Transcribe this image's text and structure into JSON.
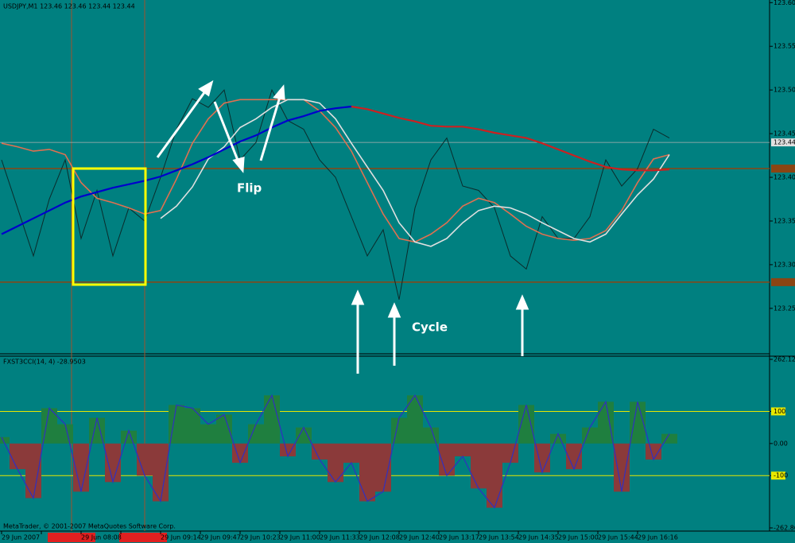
{
  "chart_data": [
    {
      "type": "line",
      "title": "USDJPY,M1  123.46 123.46 123.44 123.44",
      "ylim": [
        123.198,
        123.603
      ],
      "yticks": [
        {
          "value": 123.6,
          "label": "123.60"
        },
        123.55,
        {
          "value": 123.5,
          "label": "123.50"
        },
        123.45,
        {
          "value": 123.4,
          "label": "123.40"
        },
        123.35,
        {
          "value": 123.3,
          "label": "123.30"
        },
        123.25
      ],
      "last_price": 123.44,
      "last_color": "#b0b0b0",
      "levels": [
        123.41,
        123.28
      ],
      "level_color": "#8b4513",
      "annotations": [
        "Flip",
        "Cycle"
      ],
      "series": [
        {
          "color": "#0b2b2b",
          "width": 1,
          "values": [
            123.42,
            123.365,
            123.31,
            123.375,
            123.42,
            123.33,
            123.385,
            123.31,
            123.365,
            123.35,
            123.4,
            123.455,
            123.49,
            123.48,
            123.5,
            123.42,
            123.44,
            123.5,
            123.465,
            123.455,
            123.42,
            123.4,
            123.355,
            123.31,
            123.34,
            123.26,
            123.365,
            123.42,
            123.445,
            123.39,
            123.385,
            123.365,
            123.31,
            123.295,
            123.355,
            123.33,
            123.33,
            123.355,
            123.42,
            123.39,
            123.41,
            123.455,
            123.445
          ]
        },
        {
          "color": "#e07050",
          "width": 1.6,
          "values": [
            123.439,
            123.435,
            123.43,
            123.432,
            123.426,
            123.394,
            123.376,
            123.371,
            123.365,
            123.358,
            123.362,
            123.398,
            123.439,
            123.467,
            123.485,
            123.489,
            123.489,
            123.489,
            123.489,
            123.489,
            123.476,
            123.457,
            123.43,
            123.394,
            123.358,
            123.33,
            123.326,
            123.335,
            123.348,
            123.367,
            123.376,
            123.371,
            123.358,
            123.344,
            123.335,
            123.33,
            123.328,
            123.33,
            123.339,
            123.362,
            123.394,
            123.421,
            123.426
          ]
        },
        {
          "color": "#e0e0e0",
          "width": 1.6,
          "values": [
            null,
            null,
            null,
            null,
            null,
            null,
            null,
            null,
            null,
            null,
            123.353,
            123.367,
            123.389,
            123.421,
            123.435,
            123.457,
            123.467,
            123.48,
            123.489,
            123.489,
            123.485,
            123.467,
            123.439,
            123.412,
            123.385,
            123.348,
            123.326,
            123.321,
            123.33,
            123.348,
            123.362,
            123.367,
            123.365,
            123.358,
            123.348,
            123.339,
            123.33,
            123.326,
            123.335,
            123.358,
            123.38,
            123.398,
            123.426
          ]
        },
        {
          "color": "#0000cc",
          "width": 2.2,
          "values": [
            123.335,
            123.344,
            123.353,
            123.362,
            123.371,
            123.378,
            123.383,
            123.388,
            123.392,
            123.396,
            123.401,
            123.408,
            123.415,
            123.423,
            123.432,
            123.441,
            123.448,
            123.457,
            123.465,
            123.47,
            123.476,
            123.479,
            123.481,
            null,
            null,
            null,
            null,
            null,
            null,
            null,
            null,
            null,
            null,
            null,
            null,
            null,
            null,
            null,
            null,
            null,
            null,
            null,
            null
          ]
        },
        {
          "color": "#cc2020",
          "width": 2.2,
          "values": [
            null,
            null,
            null,
            null,
            null,
            null,
            null,
            null,
            null,
            null,
            null,
            null,
            null,
            null,
            null,
            null,
            null,
            null,
            null,
            null,
            null,
            null,
            123.481,
            123.478,
            123.473,
            123.468,
            123.464,
            123.459,
            123.458,
            123.458,
            123.455,
            123.451,
            123.448,
            123.445,
            123.439,
            123.432,
            123.425,
            123.418,
            123.412,
            123.409,
            123.408,
            123.408,
            123.409
          ]
        }
      ]
    },
    {
      "type": "bar",
      "title": "FXST3CCI(14, 4) -28.9503",
      "ylim": [
        -262.86,
        262.12
      ],
      "yticks": [
        262.12,
        100,
        {
          "value": 0,
          "label": "0.00"
        },
        -100,
        -262.86
      ],
      "levels": [
        100,
        -100
      ],
      "level_color": "#e8e800",
      "pos_color": "#1f7f3f",
      "neg_color": "#8b3a3a",
      "line_color": "#3030c0",
      "values": [
        20,
        -80,
        -170,
        110,
        60,
        -150,
        80,
        -120,
        40,
        -100,
        -180,
        120,
        110,
        60,
        90,
        -60,
        60,
        150,
        -40,
        50,
        -50,
        -120,
        -60,
        -180,
        -150,
        80,
        150,
        50,
        -100,
        -40,
        -140,
        -200,
        -60,
        120,
        -90,
        30,
        -80,
        50,
        130,
        -150,
        130,
        -50,
        30
      ],
      "x_labels": [
        "29 Jun 2007",
        null,
        "29 Jun 08:08",
        null,
        "29 Jun 09:14",
        "29 Jun 09:47",
        "29 Jun 10:23",
        "29 Jun 11:00",
        "29 Jun 11:33",
        "29 Jun 12:08",
        "29 Jun 12:40",
        "29 Jun 13:17",
        "29 Jun 13:54",
        "29 Jun 14:35",
        "29 Jun 15:00",
        "29 Jun 15:44",
        "29 Jun 16:16"
      ],
      "copyright": "MetaTrader, © 2001-2007 MetaQuotes Software Corp."
    }
  ]
}
